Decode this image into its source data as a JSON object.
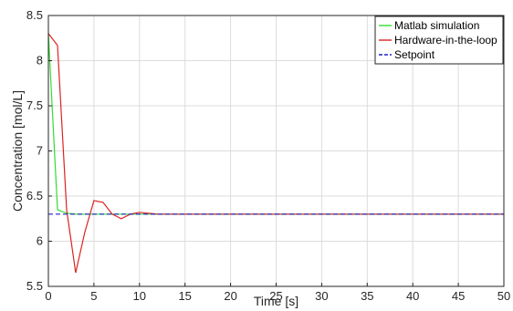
{
  "chart_data": {
    "type": "line",
    "title": "",
    "xlabel": "Time [s]",
    "ylabel": "Concentration [mol/L]",
    "xlim": [
      0,
      50
    ],
    "ylim": [
      5.5,
      8.5
    ],
    "xticks": [
      "0",
      "5",
      "10",
      "15",
      "20",
      "25",
      "30",
      "35",
      "40",
      "45",
      "50"
    ],
    "yticks": [
      "5.5",
      "6",
      "6.5",
      "7",
      "7.5",
      "8",
      "8.5"
    ],
    "grid": true,
    "legend_position": "top-right",
    "series": [
      {
        "name": "Matlab  simulation",
        "color": "#33dd33",
        "dash": "solid",
        "x": [
          0,
          1,
          2,
          3,
          4,
          5,
          10,
          15,
          20,
          30,
          40,
          50
        ],
        "y": [
          8.3,
          6.35,
          6.31,
          6.3,
          6.3,
          6.3,
          6.3,
          6.3,
          6.3,
          6.3,
          6.3,
          6.3
        ]
      },
      {
        "name": "Hardware-in-the-loop",
        "color": "#dd2222",
        "dash": "solid",
        "x": [
          0,
          1,
          2,
          3,
          4,
          5,
          6,
          7,
          8,
          9,
          10,
          11,
          12,
          13,
          15,
          20,
          30,
          40,
          50
        ],
        "y": [
          8.3,
          8.17,
          6.35,
          5.65,
          6.1,
          6.45,
          6.43,
          6.3,
          6.25,
          6.3,
          6.32,
          6.31,
          6.3,
          6.3,
          6.3,
          6.3,
          6.3,
          6.3,
          6.3
        ]
      },
      {
        "name": "Setpoint",
        "color": "#2222cc",
        "dash": "dashed",
        "x": [
          0,
          50
        ],
        "y": [
          6.3,
          6.3
        ]
      }
    ]
  }
}
